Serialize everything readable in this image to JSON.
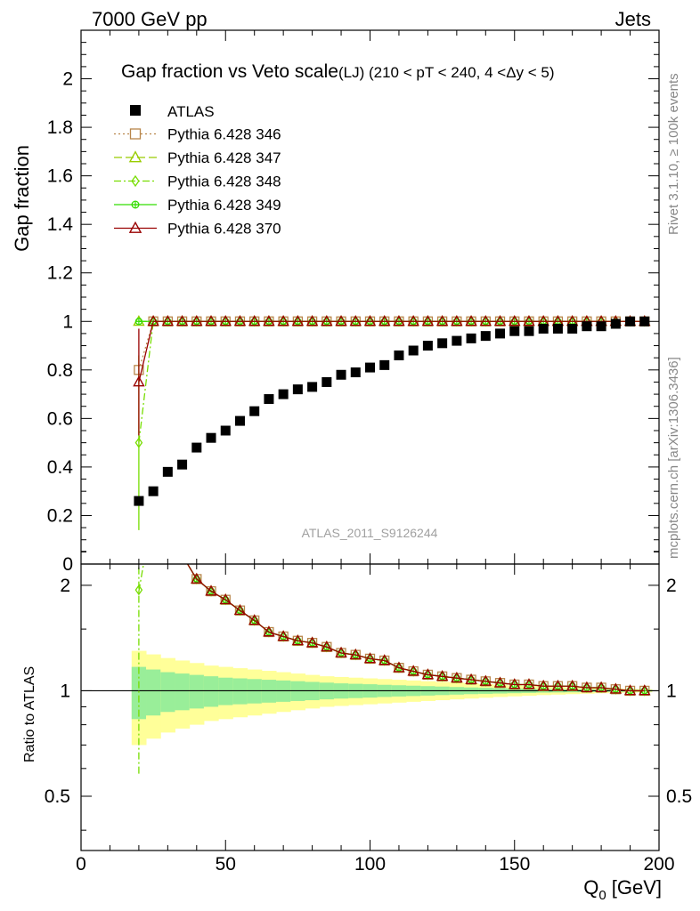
{
  "header": {
    "left": "7000 GeV pp",
    "right": "Jets"
  },
  "side_labels": {
    "rivet": "Rivet 3.1.10, ≥ 100k events",
    "mcplots": "mcplots.cern.ch [arXiv:1306.3436]"
  },
  "watermark": "ATLAS_2011_S9126244",
  "chart_data": {
    "type": "scatter",
    "title": "Gap fraction vs Veto scale",
    "subtitle": "(LJ) (210 < pT < 240, 4 <Δy < 5)",
    "ylabel": "Gap fraction",
    "ratio_ylabel": "Ratio to ATLAS",
    "xlabel": "Q",
    "xlabel_sub": "0",
    "xlabel_unit": "[GeV]",
    "xlim": [
      0,
      200
    ],
    "ylim": [
      0,
      2.2
    ],
    "ratio_ylim": [
      0.35,
      2.3
    ],
    "ratio_scale": "log",
    "x_ticks": [
      "0",
      "50",
      "100",
      "150",
      "200"
    ],
    "y_ticks": [
      "0",
      "0.2",
      "0.4",
      "0.6",
      "0.8",
      "1",
      "1.2",
      "1.4",
      "1.6",
      "1.8",
      "2"
    ],
    "ratio_ticks": [
      "0.5",
      "1",
      "2"
    ],
    "x": [
      20,
      25,
      30,
      35,
      40,
      45,
      50,
      55,
      60,
      65,
      70,
      75,
      80,
      85,
      90,
      95,
      100,
      105,
      110,
      115,
      120,
      125,
      130,
      135,
      140,
      145,
      150,
      155,
      160,
      165,
      170,
      175,
      180,
      185,
      190,
      195
    ],
    "data": {
      "name": "ATLAS",
      "values": [
        0.26,
        0.3,
        0.38,
        0.41,
        0.48,
        0.52,
        0.55,
        0.59,
        0.63,
        0.68,
        0.7,
        0.72,
        0.73,
        0.75,
        0.78,
        0.79,
        0.81,
        0.82,
        0.86,
        0.88,
        0.9,
        0.91,
        0.92,
        0.93,
        0.94,
        0.95,
        0.96,
        0.96,
        0.97,
        0.97,
        0.97,
        0.98,
        0.98,
        0.99,
        1.0,
        1.0
      ],
      "band_stat": [
        0.17,
        0.15,
        0.13,
        0.12,
        0.11,
        0.1,
        0.09,
        0.085,
        0.08,
        0.075,
        0.07,
        0.065,
        0.06,
        0.055,
        0.05,
        0.047,
        0.044,
        0.04,
        0.037,
        0.034,
        0.031,
        0.028,
        0.025,
        0.022,
        0.02,
        0.018,
        0.016,
        0.014,
        0.012,
        0.011,
        0.01,
        0.009,
        0.008,
        0.007,
        0.006,
        0.005
      ],
      "band_total": [
        0.3,
        0.27,
        0.24,
        0.22,
        0.2,
        0.18,
        0.17,
        0.16,
        0.15,
        0.14,
        0.13,
        0.12,
        0.11,
        0.1,
        0.095,
        0.09,
        0.085,
        0.08,
        0.075,
        0.07,
        0.065,
        0.06,
        0.055,
        0.05,
        0.045,
        0.04,
        0.036,
        0.032,
        0.028,
        0.025,
        0.022,
        0.019,
        0.016,
        0.014,
        0.012,
        0.01
      ]
    },
    "series": [
      {
        "name": "Pythia 6.428 346",
        "color": "#b8864b",
        "marker": "square-open",
        "dash": "2,3",
        "first": {
          "y": 0.8,
          "err": 0
        },
        "ratio_first": null
      },
      {
        "name": "Pythia 6.428 347",
        "color": "#99cc00",
        "marker": "triangle-open",
        "dash": "9,4",
        "first": {
          "y": 1.0,
          "err": 0
        },
        "ratio_first": null
      },
      {
        "name": "Pythia 6.428 348",
        "color": "#77dd00",
        "marker": "diamond-open",
        "dash": "8,3,2,3",
        "first": {
          "y": 0.5,
          "err": 0.36
        },
        "ratio_first": {
          "y": 1.94,
          "lo": 0.58
        }
      },
      {
        "name": "Pythia 6.428 349",
        "color": "#33dd00",
        "marker": "circle-cross",
        "dash": "",
        "first": {
          "y": 1.0,
          "err": 0
        },
        "ratio_first": null
      },
      {
        "name": "Pythia 6.428 370",
        "color": "#990000",
        "marker": "triangle-open",
        "dash": "",
        "first": {
          "y": 0.75,
          "err": 0.22
        },
        "ratio_first": null
      }
    ],
    "legend_position": "top-left"
  }
}
